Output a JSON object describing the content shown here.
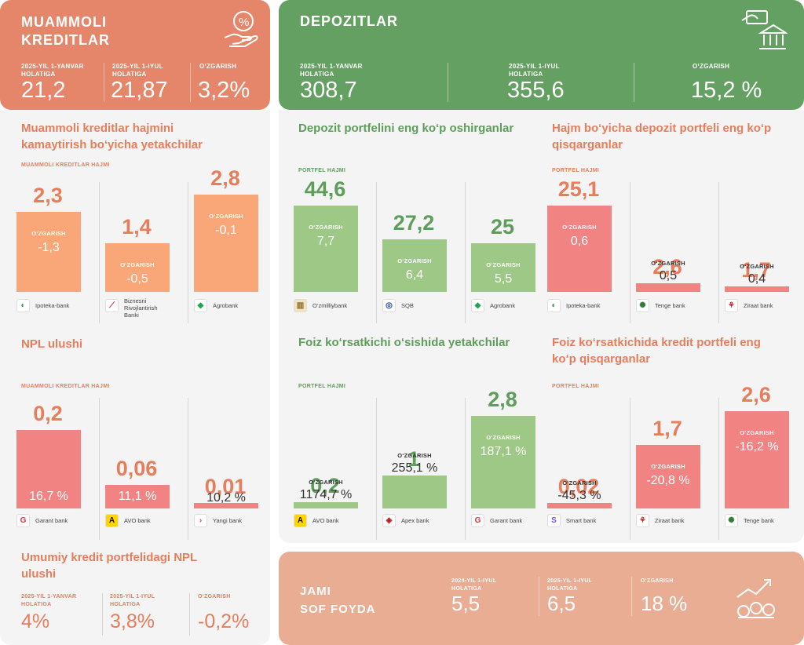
{
  "colors": {
    "orange_header": "#e5866a",
    "green_header": "#65a063",
    "bottom_card": "#e9ad94",
    "orange_bar": "#f9a679",
    "green_bar": "#9dc885",
    "red_bar": "#f28383",
    "panel_bg": "#f4f4f4"
  },
  "left_header": {
    "title": "MUAMMOLI\nKREDITLAR",
    "icon": "percent-hand-icon",
    "stats": [
      {
        "label": "2025-YIL 1-YANVAR HOLATIGA",
        "value": "21,2"
      },
      {
        "label": "2025-YIL 1-IYUL HOLATIGA",
        "value": "21,87"
      },
      {
        "label": "O‘ZGARISH",
        "value": "3,2%"
      }
    ]
  },
  "right_header": {
    "title": "DEPOZITLAR",
    "icon": "bank-money-icon",
    "stats": [
      {
        "label": "2025-YIL 1-YANVAR HOLATIGA",
        "value": "308,7"
      },
      {
        "label": "2025-YIL 1-IYUL HOLATIGA",
        "value": "355,6"
      },
      {
        "label": "O‘ZGARISH",
        "value": "15,2 %"
      }
    ]
  },
  "chart_data": [
    {
      "type": "bar",
      "title": "Muammoli kreditlar hajmini kamaytirish bo‘yicha yetakchilar",
      "ylabel": "MUAMMOLI KREDITLAR HAJMI",
      "change_label": "O‘ZGARISH",
      "categories": [
        "Ipoteka-bank",
        "Biznesni Rivojlantirish Banki",
        "Agrobank"
      ],
      "values": [
        2.3,
        1.4,
        2.8
      ],
      "value_labels": [
        "2,3",
        "1,4",
        "2,8"
      ],
      "changes": [
        "-1,3",
        "-0,5",
        "-0,1"
      ]
    },
    {
      "type": "bar",
      "title": "NPL ulushi",
      "ylabel": "MUAMMOLI KREDITLAR HAJMI",
      "categories": [
        "Garant bank",
        "AVO bank",
        "Yangi bank"
      ],
      "values": [
        0.2,
        0.06,
        0.01
      ],
      "value_labels": [
        "0,2",
        "0,06",
        "0,01"
      ],
      "changes": [
        "16,7 %",
        "11,1 %",
        "10,2 %"
      ]
    },
    {
      "type": "bar",
      "title": "Depozit portfelini eng ko‘p oshirganlar",
      "ylabel": "PORTFEL HAJMI",
      "change_label": "O‘ZGARISH",
      "categories": [
        "O‘zmilliybank",
        "SQB",
        "Agrobank"
      ],
      "values": [
        44.6,
        27.2,
        25
      ],
      "value_labels": [
        "44,6",
        "27,2",
        "25"
      ],
      "changes": [
        "7,7",
        "6,4",
        "5,5"
      ]
    },
    {
      "type": "bar",
      "title": "Hajm bo‘yicha depozit portfeli eng ko‘p qisqarganlar",
      "ylabel": "PORTFEL HAJMI",
      "change_label": "O‘ZGARISH",
      "categories": [
        "Ipoteka-bank",
        "Tenge bank",
        "Ziraat bank"
      ],
      "values": [
        25.1,
        2.6,
        1.7
      ],
      "value_labels": [
        "25,1",
        "2,6",
        "1,7"
      ],
      "changes": [
        "0,6",
        "0,5",
        "0,4"
      ]
    },
    {
      "type": "bar",
      "title": "Foiz ko‘rsatkichi o‘sishida yetakchilar",
      "ylabel": "PORTFEL HAJMI",
      "change_label": "O‘ZGARISH",
      "categories": [
        "AVO bank",
        "Apex bank",
        "Garant bank"
      ],
      "values": [
        0.2,
        1,
        2.8
      ],
      "value_labels": [
        "0,2",
        "1",
        "2,8"
      ],
      "changes": [
        "1174,7 %",
        "255,1 %",
        "187,1 %"
      ]
    },
    {
      "type": "bar",
      "title": "Foiz ko‘rsatkichida kredit portfeli eng ko‘p qisqarganlar",
      "ylabel": "PORTFEL HAJMI",
      "change_label": "O‘ZGARISH",
      "categories": [
        "Smart bank",
        "Ziraat bank",
        "Tenge bank"
      ],
      "values": [
        0.02,
        1.7,
        2.6
      ],
      "value_labels": [
        "0,02",
        "1,7",
        "2,6"
      ],
      "changes": [
        "-45,3 %",
        "-20,8 %",
        "-16,2 %"
      ]
    }
  ],
  "npl_total": {
    "title": "Umumiy kredit portfelidagi NPL ulushi",
    "stats": [
      {
        "label": "2025-YIL 1-YANVAR HOLATIGA",
        "value": "4%"
      },
      {
        "label": "2025-YIL 1-IYUL HOLATIGA",
        "value": "3,8%"
      },
      {
        "label": "O‘ZGARISH",
        "value": "-0,2%"
      }
    ]
  },
  "profit": {
    "title": "JAMI\nSOF FOYDA",
    "icon": "growth-coins-icon",
    "stats": [
      {
        "label": "2024-YIL 1-IYUL HOLATIGA",
        "value": "5,5"
      },
      {
        "label": "2025-YIL 1-IYUL HOLATIGA",
        "value": "6,5"
      },
      {
        "label": "O‘ZGARISH",
        "value": "18 %"
      }
    ]
  }
}
